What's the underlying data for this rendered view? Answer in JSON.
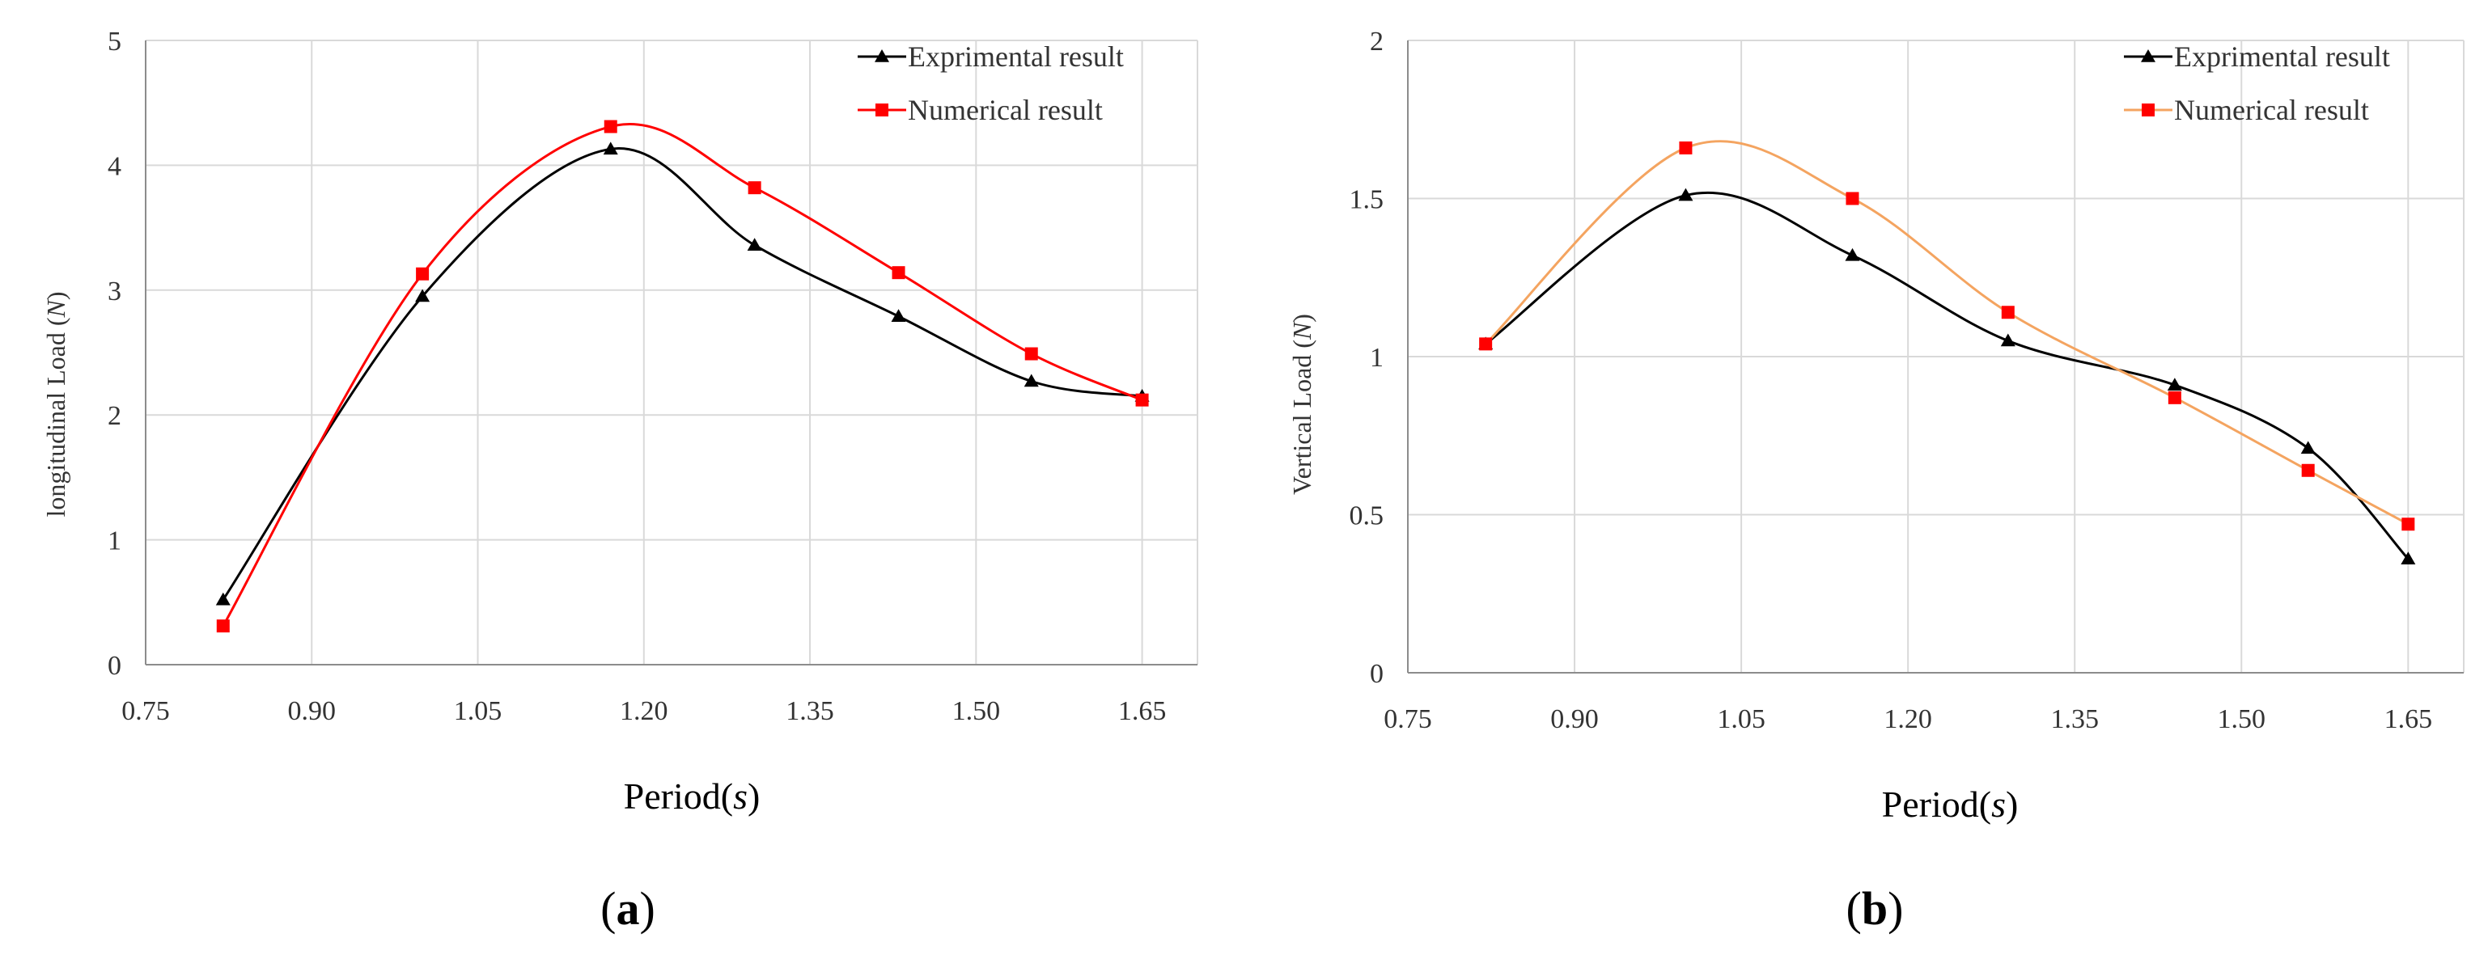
{
  "colors": {
    "experimental": "#000000",
    "numerical_a": "#ff0000",
    "numerical_b_line": "#f4a460",
    "numerical_marker": "#ff0000",
    "grid": "#d9d9d9",
    "axis": "#8c8c8c"
  },
  "chart_data": [
    {
      "type": "line",
      "panel_label": "a",
      "xlabel_prefix": "Period(",
      "xlabel_unit": "s",
      "xlabel_suffix": ")",
      "ylabel_prefix": "longitudinal  Load (",
      "ylabel_unit": "N",
      "ylabel_suffix": ")",
      "xlim": [
        0.75,
        1.7
      ],
      "ylim": [
        0,
        5
      ],
      "xticks": [
        "0.75",
        "0.90",
        "1.05",
        "1.20",
        "1.35",
        "1.50",
        "1.65"
      ],
      "yticks": [
        "0",
        "1",
        "2",
        "3",
        "4",
        "5"
      ],
      "grid": true,
      "legend_position": "top-right",
      "series": [
        {
          "name": "Exprimental result",
          "marker": "triangle",
          "color_key": "experimental",
          "x": [
            0.82,
            1.0,
            1.17,
            1.3,
            1.43,
            1.55,
            1.65
          ],
          "y": [
            0.52,
            2.95,
            4.13,
            3.36,
            2.79,
            2.27,
            2.15
          ]
        },
        {
          "name": "Numerical result",
          "marker": "square",
          "color_key": "numerical_a",
          "x": [
            0.82,
            1.0,
            1.17,
            1.3,
            1.43,
            1.55,
            1.65
          ],
          "y": [
            0.31,
            3.13,
            4.31,
            3.82,
            3.14,
            2.49,
            2.12
          ]
        }
      ]
    },
    {
      "type": "line",
      "panel_label": "b",
      "xlabel_prefix": "Period(",
      "xlabel_unit": "s",
      "xlabel_suffix": ")",
      "ylabel_prefix": "Vertical  Load (",
      "ylabel_unit": "N",
      "ylabel_suffix": ")",
      "xlim": [
        0.75,
        1.7
      ],
      "ylim": [
        0,
        2
      ],
      "xticks": [
        "0.75",
        "0.90",
        "1.05",
        "1.20",
        "1.35",
        "1.50",
        "1.65"
      ],
      "yticks": [
        "0",
        "0.5",
        "1",
        "1.5",
        "2"
      ],
      "grid": true,
      "legend_position": "top-right",
      "series": [
        {
          "name": "Exprimental result",
          "marker": "triangle",
          "color_key": "experimental",
          "x": [
            0.82,
            1.0,
            1.15,
            1.29,
            1.44,
            1.56,
            1.65
          ],
          "y": [
            1.04,
            1.51,
            1.32,
            1.05,
            0.91,
            0.71,
            0.36
          ]
        },
        {
          "name": "Numerical result",
          "marker": "square",
          "color_key": "numerical_b_line",
          "x": [
            0.82,
            1.0,
            1.15,
            1.29,
            1.44,
            1.56,
            1.65
          ],
          "y": [
            1.04,
            1.66,
            1.5,
            1.14,
            0.87,
            0.64,
            0.47
          ]
        }
      ]
    }
  ]
}
